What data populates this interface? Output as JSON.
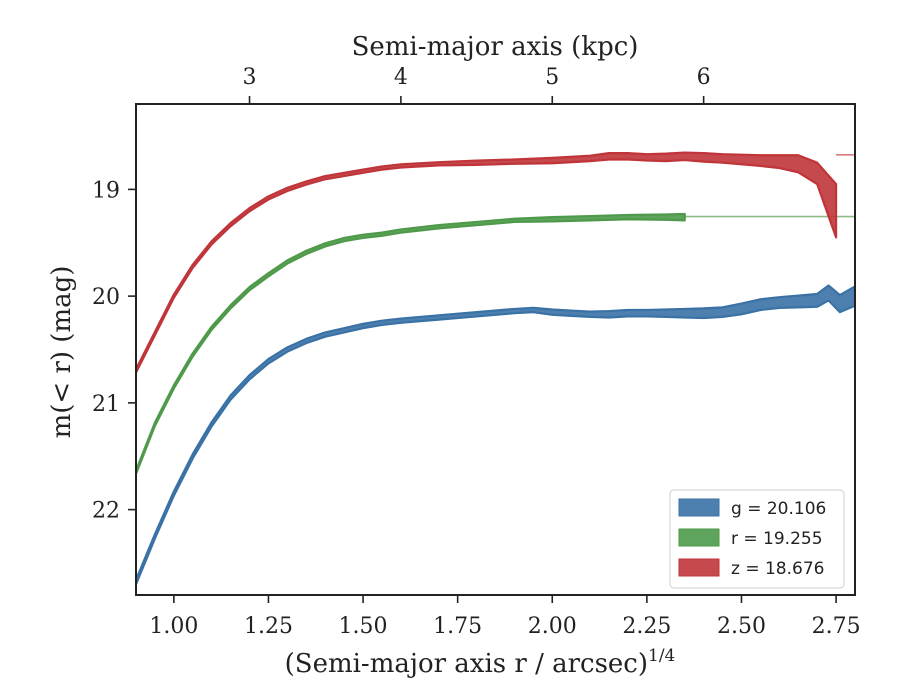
{
  "chart_data": {
    "type": "line",
    "title": "",
    "xlabel": "(Semi-major axis r / arcsec)",
    "xlabel_exponent": "1/4",
    "ylabel": "m(< r) (mag)",
    "top_xlabel": "Semi-major axis (kpc)",
    "xlim": [
      0.9,
      2.8
    ],
    "ylim": [
      22.8,
      18.2
    ],
    "y_inverted": true,
    "x_ticks": [
      1.0,
      1.25,
      1.5,
      1.75,
      2.0,
      2.25,
      2.5,
      2.75
    ],
    "x_tick_labels": [
      "1.00",
      "1.25",
      "1.50",
      "1.75",
      "2.00",
      "2.25",
      "2.50",
      "2.75"
    ],
    "y_ticks": [
      19,
      20,
      21,
      22
    ],
    "y_tick_labels": [
      "19",
      "20",
      "21",
      "22"
    ],
    "top_ticks": [
      1.2,
      1.6,
      2.0,
      2.4
    ],
    "top_tick_labels": [
      "3",
      "4",
      "5",
      "6"
    ],
    "grid": false,
    "legend_position": "bottom-right",
    "series": [
      {
        "name": "g",
        "legend_label": "g = 20.106",
        "color": "#3a72a6",
        "asymptote": 20.106,
        "x": [
          0.9,
          0.95,
          1.0,
          1.05,
          1.1,
          1.15,
          1.2,
          1.25,
          1.3,
          1.35,
          1.4,
          1.45,
          1.5,
          1.55,
          1.6,
          1.7,
          1.8,
          1.9,
          1.95,
          2.0,
          2.05,
          2.1,
          2.15,
          2.2,
          2.25,
          2.3,
          2.35,
          2.4,
          2.45,
          2.5,
          2.55,
          2.6,
          2.65,
          2.7,
          2.73,
          2.76,
          2.8
        ],
        "y": [
          22.68,
          22.25,
          21.85,
          21.5,
          21.2,
          20.95,
          20.76,
          20.61,
          20.5,
          20.42,
          20.36,
          20.32,
          20.28,
          20.25,
          20.23,
          20.2,
          20.17,
          20.14,
          20.13,
          20.15,
          20.16,
          20.17,
          20.17,
          20.16,
          20.16,
          20.16,
          20.16,
          20.16,
          20.15,
          20.12,
          20.08,
          20.06,
          20.05,
          20.04,
          19.97,
          20.07,
          20.0
        ],
        "err": [
          0.02,
          0.02,
          0.02,
          0.02,
          0.02,
          0.02,
          0.02,
          0.02,
          0.02,
          0.02,
          0.02,
          0.02,
          0.02,
          0.02,
          0.02,
          0.02,
          0.02,
          0.02,
          0.02,
          0.025,
          0.025,
          0.025,
          0.03,
          0.03,
          0.03,
          0.035,
          0.04,
          0.045,
          0.045,
          0.05,
          0.05,
          0.05,
          0.055,
          0.06,
          0.07,
          0.08,
          0.09
        ]
      },
      {
        "name": "r",
        "legend_label": "r = 19.255",
        "color": "#4e9a4a",
        "asymptote": 19.255,
        "x": [
          0.9,
          0.95,
          1.0,
          1.05,
          1.1,
          1.15,
          1.2,
          1.25,
          1.3,
          1.35,
          1.4,
          1.45,
          1.5,
          1.55,
          1.6,
          1.7,
          1.8,
          1.9,
          2.0,
          2.1,
          2.2,
          2.3,
          2.35
        ],
        "y": [
          21.65,
          21.2,
          20.85,
          20.55,
          20.3,
          20.1,
          19.93,
          19.8,
          19.68,
          19.59,
          19.52,
          19.47,
          19.44,
          19.42,
          19.39,
          19.35,
          19.32,
          19.29,
          19.28,
          19.27,
          19.26,
          19.26,
          19.26
        ],
        "err": [
          0.015,
          0.015,
          0.015,
          0.015,
          0.015,
          0.015,
          0.015,
          0.015,
          0.015,
          0.015,
          0.015,
          0.015,
          0.015,
          0.015,
          0.015,
          0.015,
          0.015,
          0.015,
          0.02,
          0.02,
          0.02,
          0.025,
          0.03
        ]
      },
      {
        "name": "z",
        "legend_label": "z = 18.676",
        "color": "#c0353a",
        "asymptote": 18.676,
        "x": [
          0.9,
          0.95,
          1.0,
          1.05,
          1.1,
          1.15,
          1.2,
          1.25,
          1.3,
          1.35,
          1.4,
          1.45,
          1.5,
          1.55,
          1.6,
          1.7,
          1.8,
          1.9,
          2.0,
          2.1,
          2.15,
          2.2,
          2.25,
          2.3,
          2.35,
          2.4,
          2.45,
          2.5,
          2.55,
          2.6,
          2.65,
          2.7,
          2.75
        ],
        "y": [
          20.7,
          20.35,
          20.0,
          19.72,
          19.5,
          19.33,
          19.19,
          19.08,
          19.0,
          18.94,
          18.89,
          18.86,
          18.83,
          18.8,
          18.78,
          18.76,
          18.75,
          18.74,
          18.73,
          18.71,
          18.69,
          18.69,
          18.7,
          18.7,
          18.69,
          18.7,
          18.71,
          18.72,
          18.73,
          18.74,
          18.76,
          18.85,
          19.2
        ],
        "err": [
          0.015,
          0.015,
          0.015,
          0.015,
          0.015,
          0.015,
          0.015,
          0.015,
          0.015,
          0.015,
          0.015,
          0.015,
          0.015,
          0.015,
          0.015,
          0.015,
          0.02,
          0.02,
          0.025,
          0.025,
          0.03,
          0.03,
          0.03,
          0.035,
          0.035,
          0.04,
          0.04,
          0.045,
          0.05,
          0.06,
          0.08,
          0.1,
          0.25
        ]
      }
    ]
  }
}
